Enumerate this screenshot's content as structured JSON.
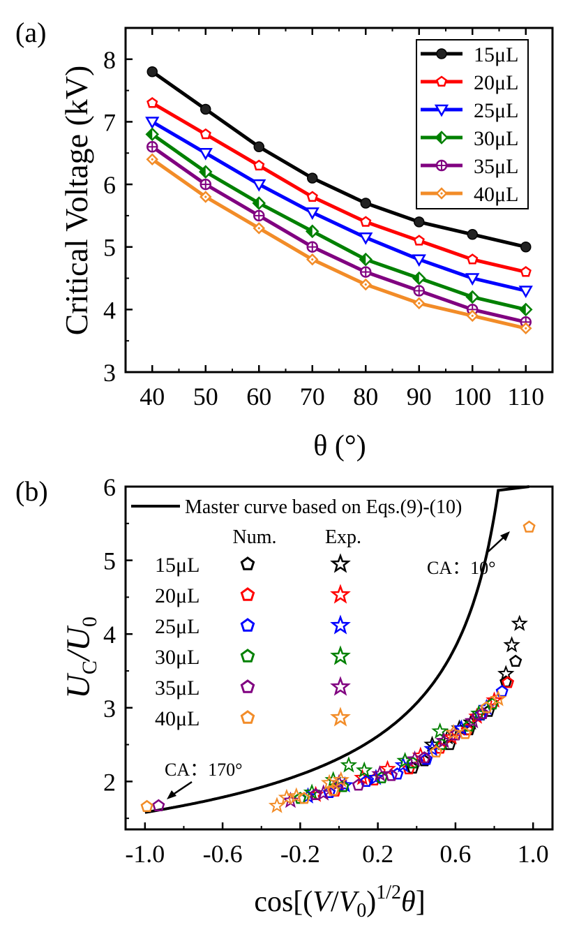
{
  "chart_data": [
    {
      "panel_label": "(a)",
      "type": "line",
      "xlabel": "θ (°)",
      "ylabel": "Critical Voltage (kV)",
      "x": [
        40,
        50,
        60,
        70,
        80,
        90,
        100,
        110
      ],
      "xlim": [
        35,
        115
      ],
      "ylim": [
        3,
        8.5
      ],
      "xticks": [
        "40",
        "50",
        "60",
        "70",
        "80",
        "90",
        "100",
        "110"
      ],
      "yticks": [
        "3",
        "4",
        "5",
        "6",
        "7",
        "8"
      ],
      "legend_position": "top-right",
      "grid": false,
      "series": [
        {
          "name": "15μL",
          "color": "#000000",
          "marker": "sphere",
          "values": [
            7.8,
            7.2,
            6.6,
            6.1,
            5.7,
            5.4,
            5.2,
            5.0
          ]
        },
        {
          "name": "20μL",
          "color": "#ff0000",
          "marker": "pentagon",
          "values": [
            7.3,
            6.8,
            6.3,
            5.8,
            5.4,
            5.1,
            4.8,
            4.6
          ]
        },
        {
          "name": "25μL",
          "color": "#0000ff",
          "marker": "triangle-down",
          "values": [
            7.0,
            6.5,
            6.0,
            5.55,
            5.15,
            4.8,
            4.5,
            4.3
          ]
        },
        {
          "name": "30μL",
          "color": "#008000",
          "marker": "diamond-half",
          "values": [
            6.8,
            6.2,
            5.7,
            5.25,
            4.8,
            4.5,
            4.2,
            4.0
          ]
        },
        {
          "name": "35μL",
          "color": "#800080",
          "marker": "circle-plus",
          "values": [
            6.6,
            6.0,
            5.5,
            5.0,
            4.6,
            4.3,
            4.0,
            3.8
          ]
        },
        {
          "name": "40μL",
          "color": "#f28c28",
          "marker": "diamond-dot",
          "values": [
            6.4,
            5.8,
            5.3,
            4.8,
            4.4,
            4.1,
            3.9,
            3.7
          ]
        }
      ]
    },
    {
      "panel_label": "(b)",
      "type": "scatter",
      "xlabel": "cos[(V/V0)^1/2 θ]",
      "ylabel": "UC/U0",
      "xlim": [
        -1.1,
        1.1
      ],
      "ylim": [
        1.35,
        6.0
      ],
      "xticks": [
        "-1.0",
        "-0.6",
        "-0.2",
        "0.2",
        "0.6",
        "1.0"
      ],
      "yticks": [
        "2",
        "3",
        "4",
        "5",
        "6"
      ],
      "grid": false,
      "master_curve_label": "Master curve based on  Eqs.(9)-(10)",
      "legend_headers": [
        "Num.",
        "Exp."
      ],
      "annotations": [
        "CA：10°",
        "CA：170°"
      ],
      "series": [
        {
          "name": "15μL",
          "color": "#000000",
          "num": [
            [
              0.91,
              3.63
            ],
            [
              0.86,
              3.35
            ],
            [
              0.77,
              2.95
            ],
            [
              0.67,
              2.7
            ],
            [
              0.57,
              2.5
            ],
            [
              0.44,
              2.28
            ],
            [
              0.38,
              2.18
            ]
          ],
          "exp": [
            [
              0.93,
              4.14
            ],
            [
              0.89,
              3.85
            ],
            [
              0.86,
              3.46
            ],
            [
              0.68,
              2.8
            ],
            [
              0.62,
              2.72
            ],
            [
              0.56,
              2.6
            ],
            [
              0.48,
              2.5
            ]
          ]
        },
        {
          "name": "20μL",
          "color": "#ff0000",
          "num": [
            [
              0.87,
              3.34
            ],
            [
              0.79,
              3.06
            ],
            [
              0.66,
              2.7
            ],
            [
              0.52,
              2.45
            ],
            [
              0.36,
              2.17
            ],
            [
              0.18,
              2.02
            ],
            [
              -0.02,
              1.87
            ]
          ],
          "exp": [
            [
              0.8,
              3.1
            ],
            [
              0.71,
              2.88
            ],
            [
              0.58,
              2.6
            ],
            [
              0.42,
              2.35
            ],
            [
              0.25,
              2.17
            ],
            [
              0.12,
              2.05
            ],
            [
              -0.12,
              1.82
            ]
          ]
        },
        {
          "name": "25μL",
          "color": "#0000ff",
          "num": [
            [
              0.84,
              3.22
            ],
            [
              0.73,
              2.9
            ],
            [
              0.6,
              2.63
            ],
            [
              0.45,
              2.3
            ],
            [
              0.3,
              2.1
            ],
            [
              0.14,
              2.0
            ],
            [
              -0.05,
              1.85
            ]
          ],
          "exp": [
            [
              0.76,
              3.0
            ],
            [
              0.63,
              2.72
            ],
            [
              0.48,
              2.44
            ],
            [
              0.33,
              2.22
            ],
            [
              0.19,
              2.05
            ],
            [
              0.03,
              1.95
            ],
            [
              -0.16,
              1.8
            ]
          ]
        },
        {
          "name": "30μL",
          "color": "#008000",
          "num": [
            [
              0.79,
              3.05
            ],
            [
              0.67,
              2.75
            ],
            [
              0.53,
              2.5
            ],
            [
              0.38,
              2.25
            ],
            [
              0.22,
              2.05
            ],
            [
              0.02,
              1.93
            ],
            [
              -0.2,
              1.77
            ]
          ],
          "exp": [
            [
              0.72,
              2.92
            ],
            [
              0.52,
              2.68
            ],
            [
              0.34,
              2.28
            ],
            [
              0.13,
              2.15
            ],
            [
              0.05,
              2.22
            ],
            [
              -0.03,
              2.02
            ],
            [
              -0.14,
              1.85
            ]
          ]
        },
        {
          "name": "35μL",
          "color": "#800080",
          "num": [
            [
              0.74,
              2.92
            ],
            [
              0.6,
              2.63
            ],
            [
              0.44,
              2.32
            ],
            [
              0.27,
              2.08
            ],
            [
              0.1,
              1.95
            ],
            [
              -0.12,
              1.82
            ],
            [
              -0.93,
              1.67
            ]
          ],
          "exp": [
            [
              0.69,
              2.82
            ],
            [
              0.54,
              2.55
            ],
            [
              0.39,
              2.3
            ],
            [
              0.21,
              2.1
            ],
            [
              0.0,
              1.98
            ],
            [
              -0.08,
              1.84
            ],
            [
              -0.25,
              1.74
            ]
          ]
        },
        {
          "name": "40μL",
          "color": "#f28c28",
          "num": [
            [
              0.98,
              5.45
            ],
            [
              0.76,
              3.0
            ],
            [
              0.65,
              2.65
            ],
            [
              0.5,
              2.4
            ],
            [
              -0.03,
              1.88
            ],
            [
              -0.18,
              1.77
            ],
            [
              -0.99,
              1.66
            ]
          ],
          "exp": [
            [
              0.82,
              3.12
            ],
            [
              0.59,
              2.66
            ],
            [
              0.01,
              2.02
            ],
            [
              -0.05,
              1.98
            ],
            [
              -0.22,
              1.8
            ],
            [
              -0.32,
              1.67
            ],
            [
              -0.27,
              1.78
            ]
          ]
        }
      ]
    }
  ]
}
